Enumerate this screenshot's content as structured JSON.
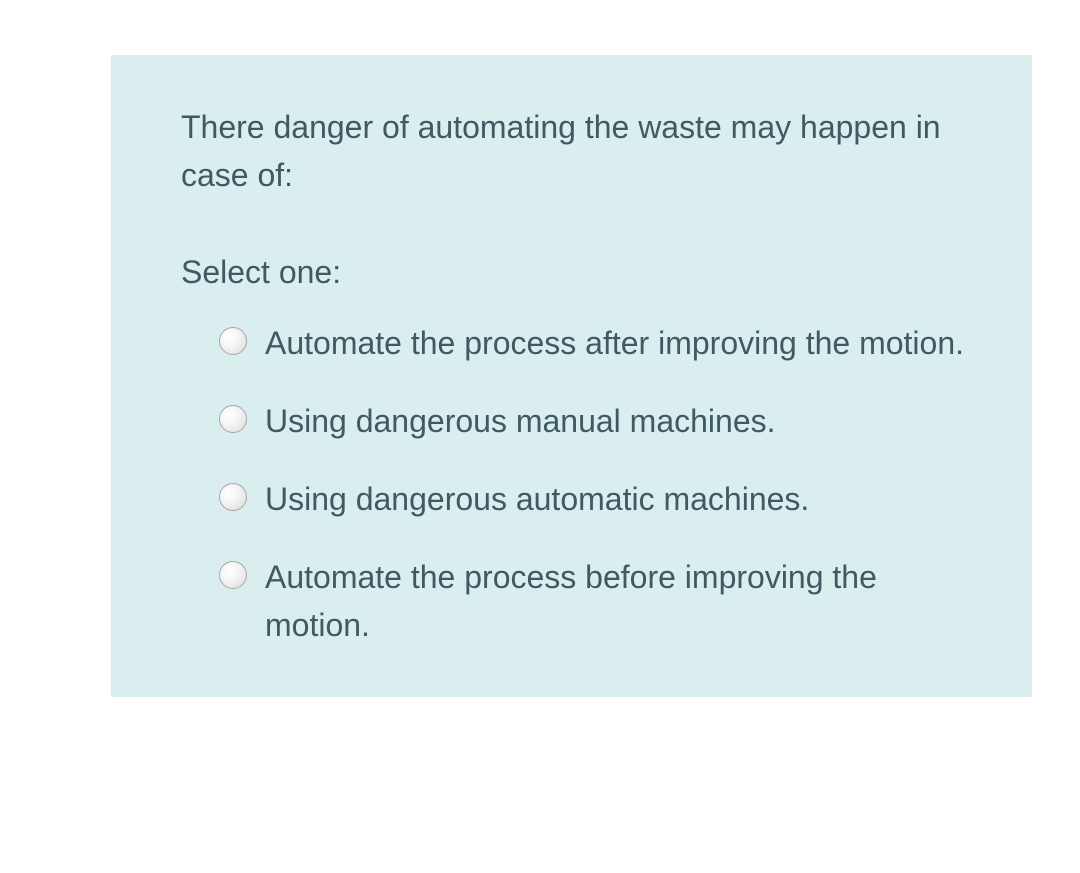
{
  "colors": {
    "panel_background": "#daeef0",
    "text_color": "#3e5a63",
    "page_background": "#ffffff",
    "border_color": "#e0e0e0"
  },
  "typography": {
    "font_family": "Arial, Helvetica, sans-serif",
    "body_fontsize": 32,
    "line_height": 1.5
  },
  "question": {
    "text": "There danger of automating the waste may happen in case of:",
    "prompt": "Select one:",
    "options": [
      {
        "label": "Automate the process after improving the motion.",
        "selected": false
      },
      {
        "label": "Using dangerous manual machines.",
        "selected": false
      },
      {
        "label": "Using dangerous automatic machines.",
        "selected": false
      },
      {
        "label": "Automate the process before improving the motion.",
        "selected": false
      }
    ]
  }
}
